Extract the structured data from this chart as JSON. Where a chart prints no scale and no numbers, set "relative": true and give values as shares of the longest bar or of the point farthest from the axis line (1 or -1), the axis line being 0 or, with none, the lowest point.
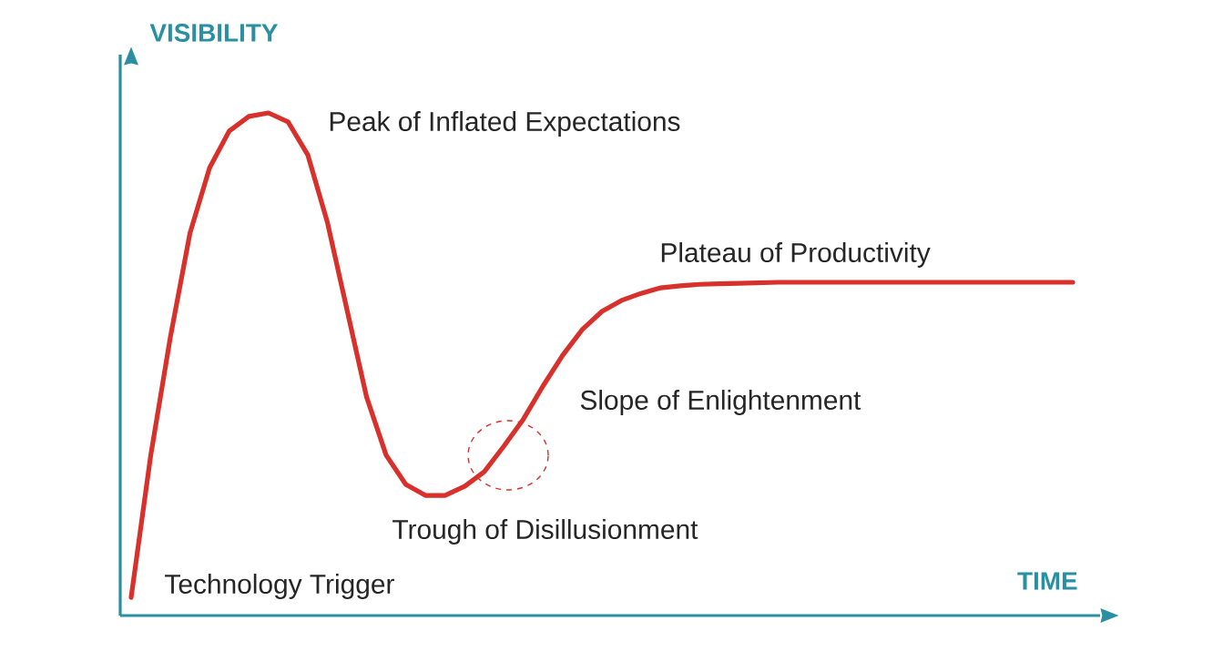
{
  "chart_data": {
    "type": "line",
    "relative": true,
    "xlabel": "TIME",
    "ylabel": "VISIBILITY",
    "color": "#d8312b",
    "categories": [
      null,
      null,
      null,
      null,
      null,
      null,
      null,
      null,
      null,
      null,
      null,
      null,
      null,
      null,
      null,
      null,
      null,
      null,
      null,
      null,
      null,
      null,
      null,
      null,
      null,
      null,
      null,
      null,
      null,
      null,
      null,
      null,
      null,
      null,
      null,
      null,
      null,
      null,
      null,
      null,
      null,
      null,
      null,
      null,
      null,
      null,
      null,
      null,
      null
    ],
    "values": [
      0.036,
      0.319,
      0.554,
      0.761,
      0.891,
      0.964,
      0.993,
      1,
      0.982,
      0.917,
      0.783,
      0.609,
      0.435,
      0.319,
      0.261,
      0.239,
      0.239,
      0.257,
      0.286,
      0.337,
      0.391,
      0.457,
      0.518,
      0.569,
      0.605,
      0.627,
      0.641,
      0.652,
      0.656,
      0.659,
      0.66,
      0.661,
      0.662,
      0.663,
      0.663,
      0.663,
      0.663,
      0.663,
      0.663,
      0.663,
      0.663,
      0.663,
      0.663,
      0.663,
      0.663,
      0.663,
      0.663,
      0.663,
      0.663
    ],
    "annotations": [
      "Peak of Inflated Expectations",
      "Plateau of Productivity",
      "Slope of Enlightenment",
      "Trough of Disillusionment",
      "Technology Trigger"
    ]
  }
}
